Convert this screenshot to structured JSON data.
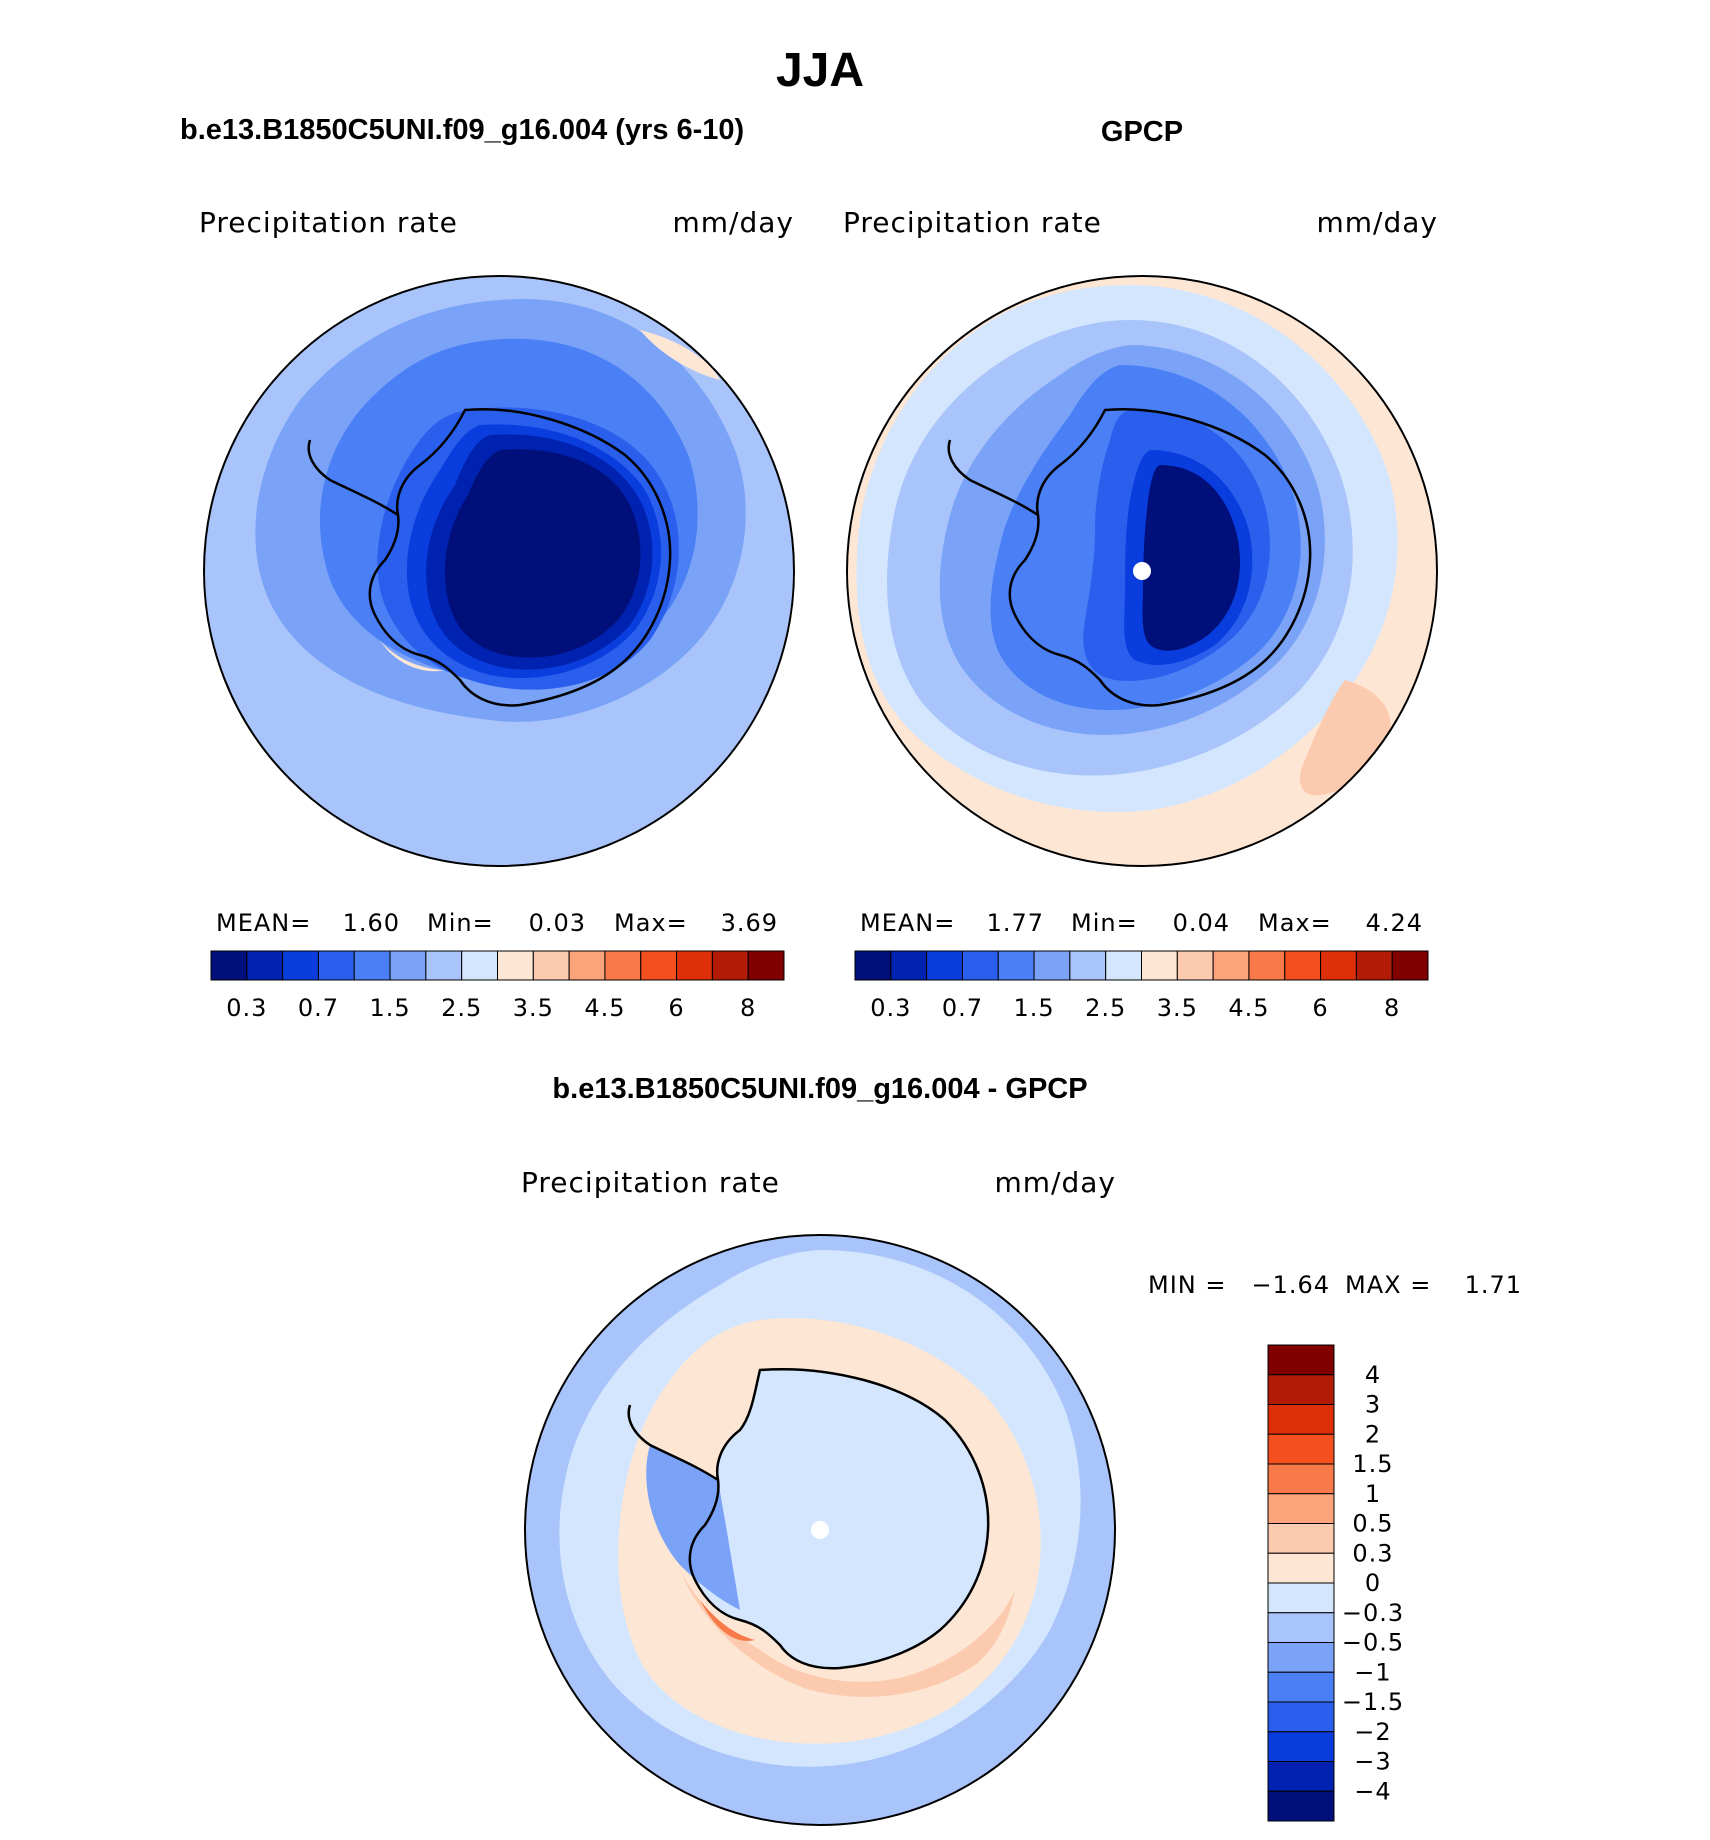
{
  "page_title": "JJA",
  "chart_data": [
    {
      "type": "heatmap",
      "projection": "south-polar-stereographic",
      "title": "b.e13.B1850C5UNI.f09_g16.004 (yrs 6-10)",
      "variable": "Precipitation  rate",
      "units": "mm/day",
      "stats": {
        "mean_label": "MEAN=",
        "mean": "1.60",
        "min_label": "Min=",
        "min": "0.03",
        "max_label": "Max=",
        "max": "3.69"
      },
      "colorbar": {
        "orientation": "horizontal",
        "levels": [
          0.2,
          0.3,
          0.5,
          0.7,
          1,
          1.5,
          2,
          2.5,
          3,
          3.5,
          4,
          4.5,
          5,
          6,
          7,
          8
        ],
        "tick_labels": [
          "0.3",
          "0.7",
          "1.5",
          "2.5",
          "3.5",
          "4.5",
          "6",
          "8"
        ]
      }
    },
    {
      "type": "heatmap",
      "projection": "south-polar-stereographic",
      "title": "GPCP",
      "variable": "Precipitation  rate",
      "units": "mm/day",
      "stats": {
        "mean_label": "MEAN=",
        "mean": "1.77",
        "min_label": "Min=",
        "min": "0.04",
        "max_label": "Max=",
        "max": "4.24"
      },
      "colorbar": {
        "orientation": "horizontal",
        "levels": [
          0.2,
          0.3,
          0.5,
          0.7,
          1,
          1.5,
          2,
          2.5,
          3,
          3.5,
          4,
          4.5,
          5,
          6,
          7,
          8
        ],
        "tick_labels": [
          "0.3",
          "0.7",
          "1.5",
          "2.5",
          "3.5",
          "4.5",
          "6",
          "8"
        ]
      }
    },
    {
      "type": "heatmap",
      "projection": "south-polar-stereographic",
      "title": "b.e13.B1850C5UNI.f09_g16.004 - GPCP",
      "variable": "Precipitation  rate",
      "units": "mm/day",
      "stats": {
        "min_label": "MIN =",
        "min": "−1.64",
        "max_label": "MAX =",
        "max": "1.71"
      },
      "colorbar": {
        "orientation": "vertical",
        "levels": [
          -4,
          -3,
          -2,
          -1.5,
          -1,
          -0.5,
          -0.3,
          0,
          0.3,
          0.5,
          1,
          1.5,
          2,
          3,
          4
        ],
        "tick_labels": [
          "4",
          "3",
          "2",
          "1.5",
          "1",
          "0.5",
          "0.3",
          "0",
          "−0.3",
          "−0.5",
          "−1",
          "−1.5",
          "−2",
          "−3",
          "−4"
        ]
      }
    }
  ],
  "colors": {
    "scale": [
      "#000f7a",
      "#0022b0",
      "#0a3ddd",
      "#2a5fee",
      "#4a7ff5",
      "#7aa3f8",
      "#a8c4fb",
      "#d4e6fd",
      "#fde6d4",
      "#fccaae",
      "#fba37a",
      "#f87a4a",
      "#f44f1f",
      "#dd3009",
      "#b21b05",
      "#800000"
    ],
    "coastline": "#000000"
  }
}
